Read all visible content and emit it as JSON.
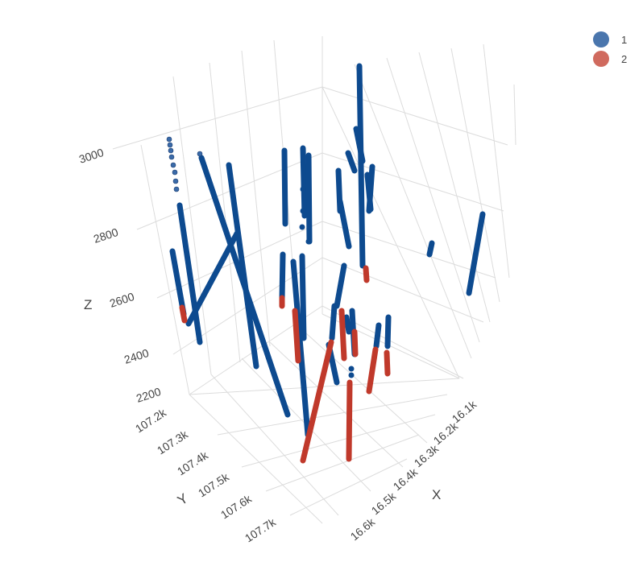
{
  "chart_data": {
    "type": "scatter3d",
    "axes": {
      "x": {
        "label": "X",
        "ticks": [
          "16.1k",
          "16.2k",
          "16.3k",
          "16.4k",
          "16.5k",
          "16.6k"
        ]
      },
      "y": {
        "label": "Y",
        "ticks": [
          "107.2k",
          "107.3k",
          "107.4k",
          "107.5k",
          "107.6k",
          "107.7k"
        ]
      },
      "z": {
        "label": "Z",
        "ticks": [
          "2200",
          "2400",
          "2600",
          "2800",
          "3000"
        ]
      }
    },
    "grid": true,
    "legend": {
      "position": "top-right",
      "entries": [
        {
          "name": "1",
          "color": "#1f4e8c"
        },
        {
          "name": "2",
          "color": "#c0392b"
        }
      ]
    },
    "series": [
      {
        "name": "1",
        "color": "#0d4a8f",
        "segments_note": "drill-hole traces (blue)"
      },
      {
        "name": "2",
        "color": "#c0392b",
        "segments_note": "drill-hole traces (red)"
      }
    ]
  }
}
